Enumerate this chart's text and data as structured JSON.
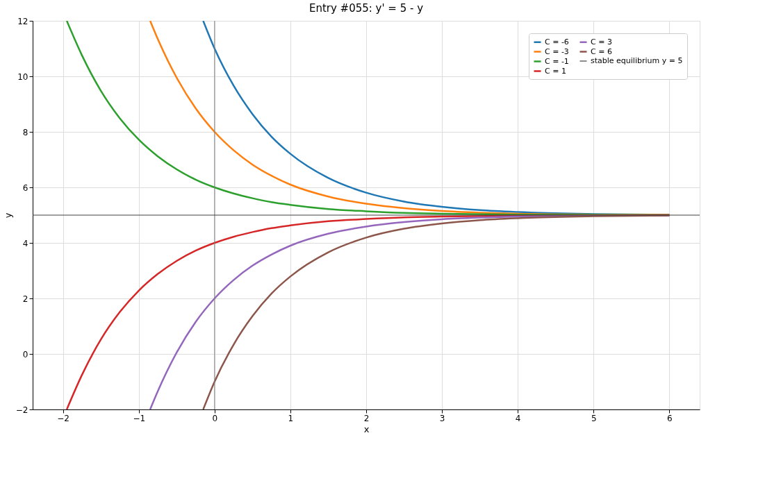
{
  "chart_data": {
    "type": "line",
    "title": "Entry #055: y' = 5 - y",
    "xlabel": "x",
    "ylabel": "y",
    "xlim": [
      -2.4,
      6.4
    ],
    "xticks": [
      {
        "value": -2,
        "label": "−2"
      },
      {
        "value": -1,
        "label": "−1"
      },
      0,
      1,
      2,
      3,
      4,
      5,
      6
    ],
    "ylim": [
      -2,
      12
    ],
    "yticks": [
      {
        "value": -2,
        "label": "−2"
      },
      0,
      2,
      4,
      6,
      8,
      10,
      12
    ],
    "grid": true,
    "legend": "top right",
    "line_style": "solid",
    "marker": "none",
    "ref_lines": [
      {
        "axis": "x",
        "value": 0,
        "color": "#808080"
      },
      {
        "axis": "y",
        "value": 5,
        "label": "stable equilibrium y = 5",
        "color": "#404040"
      }
    ],
    "series": [
      {
        "name": "C = -6",
        "color": "#1f77b4",
        "x": [
          -0.15,
          0,
          0.25,
          0.5,
          0.75,
          1,
          1.5,
          2,
          2.5,
          3,
          3.5,
          4,
          5,
          6
        ],
        "values": [
          12.0,
          11.0,
          9.67,
          8.64,
          7.83,
          7.21,
          6.34,
          5.81,
          5.49,
          5.3,
          5.18,
          5.11,
          5.04,
          5.01
        ]
      },
      {
        "name": "C = -3",
        "color": "#ff7f0e",
        "x": [
          -0.85,
          -0.75,
          -0.5,
          -0.25,
          0,
          0.25,
          0.5,
          0.75,
          1,
          1.5,
          2,
          2.5,
          3,
          3.5,
          4,
          5,
          6
        ],
        "values": [
          12.0,
          11.35,
          9.95,
          8.85,
          8.0,
          7.34,
          6.82,
          6.42,
          6.1,
          5.67,
          5.41,
          5.25,
          5.15,
          5.09,
          5.05,
          5.02,
          5.01
        ]
      },
      {
        "name": "C = -1",
        "color": "#2ca02c",
        "x": [
          -1.95,
          -1.75,
          -1.5,
          -1.25,
          -1,
          -0.75,
          -0.5,
          -0.25,
          0,
          0.25,
          0.5,
          0.75,
          1,
          1.5,
          2,
          2.5,
          3,
          4,
          5,
          6
        ],
        "values": [
          12.0,
          10.76,
          9.48,
          8.49,
          7.72,
          7.12,
          6.65,
          6.28,
          6.0,
          5.78,
          5.61,
          5.47,
          5.37,
          5.22,
          5.14,
          5.08,
          5.05,
          5.02,
          5.01,
          5.0
        ]
      },
      {
        "name": "C = 1",
        "color": "#d62728",
        "x": [
          -1.95,
          -1.75,
          -1.5,
          -1.25,
          -1,
          -0.75,
          -0.5,
          -0.25,
          0,
          0.25,
          0.5,
          0.75,
          1,
          1.5,
          2,
          2.5,
          3,
          4,
          5,
          6
        ],
        "values": [
          -2.0,
          -0.76,
          0.52,
          1.51,
          2.28,
          2.88,
          3.35,
          3.72,
          4.0,
          4.22,
          4.39,
          4.53,
          4.63,
          4.78,
          4.86,
          4.92,
          4.95,
          4.98,
          4.99,
          5.0
        ]
      },
      {
        "name": "C = 3",
        "color": "#9467bd",
        "x": [
          -0.85,
          -0.75,
          -0.5,
          -0.25,
          0,
          0.25,
          0.5,
          0.75,
          1,
          1.5,
          2,
          2.5,
          3,
          3.5,
          4,
          5,
          6
        ],
        "values": [
          -2.0,
          -1.35,
          0.05,
          1.15,
          2.0,
          2.66,
          3.18,
          3.58,
          3.9,
          4.33,
          4.59,
          4.75,
          4.85,
          4.91,
          4.95,
          4.98,
          4.99
        ]
      },
      {
        "name": "C = 6",
        "color": "#8c564b",
        "x": [
          -0.15,
          0,
          0.25,
          0.5,
          0.75,
          1,
          1.5,
          2,
          2.5,
          3,
          3.5,
          4,
          5,
          6
        ],
        "values": [
          -2.0,
          -1.0,
          0.33,
          1.36,
          2.17,
          2.79,
          3.66,
          4.19,
          4.51,
          4.7,
          4.82,
          4.89,
          4.96,
          4.99
        ]
      }
    ]
  }
}
